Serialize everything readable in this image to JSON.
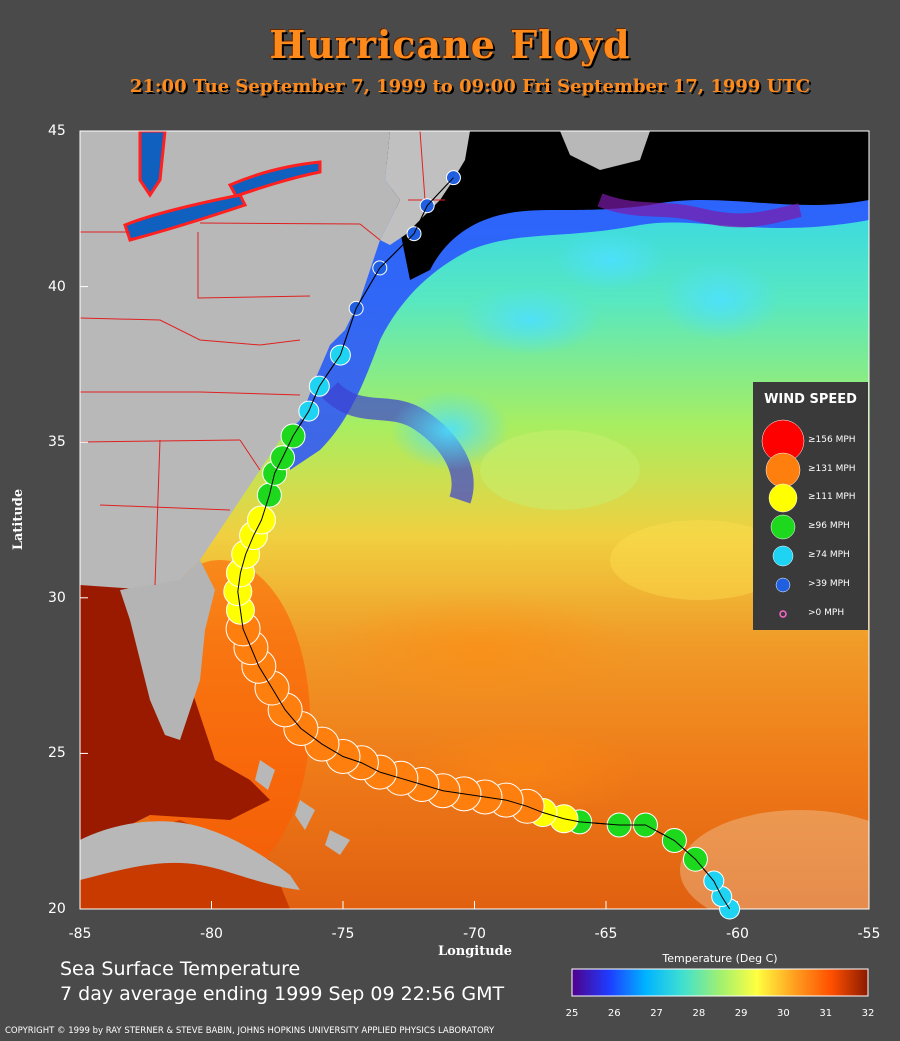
{
  "header": {
    "title": "Hurricane Floyd",
    "subtitle": "21:00 Tue September  7, 1999 to 09:00 Fri September 17, 1999  UTC"
  },
  "map": {
    "xlabel": "Longitude",
    "ylabel": "Latitude",
    "lon_range": [
      -85,
      -55
    ],
    "lat_range": [
      20,
      45
    ],
    "x_ticks": [
      "-85",
      "-80",
      "-75",
      "-70",
      "-65",
      "-60",
      "-55"
    ],
    "y_ticks": [
      "45",
      "40",
      "35",
      "30",
      "25",
      "20"
    ]
  },
  "legend": {
    "title": "WIND SPEED",
    "items": [
      {
        "label": "≥156 MPH",
        "color": "#ff0000"
      },
      {
        "label": "≥131 MPH",
        "color": "#ff7f0e"
      },
      {
        "label": "≥111 MPH",
        "color": "#ffff00"
      },
      {
        "label": "≥96 MPH",
        "color": "#1ed81e"
      },
      {
        "label": "≥74 MPH",
        "color": "#1ed4f2"
      },
      {
        "label": ">39 MPH",
        "color": "#1f5fe0"
      },
      {
        "label": ">0 MPH",
        "color": "#ff66cc"
      }
    ]
  },
  "sst": {
    "line1": "Sea Surface Temperature",
    "line2": "7 day average ending 1999 Sep 09 22:56 GMT",
    "colorbar_title": "Temperature (Deg C)",
    "colorbar_ticks": [
      "25",
      "26",
      "27",
      "28",
      "29",
      "30",
      "31",
      "32"
    ],
    "colorbar_colors": [
      "#50008a",
      "#1e3cff",
      "#00b4ff",
      "#40e0d0",
      "#a0f070",
      "#ffff40",
      "#ffa020",
      "#ff5000",
      "#8a1a00"
    ]
  },
  "footer": {
    "copyright": "COPYRIGHT © 1999 by RAY STERNER & STEVE BABIN, JOHNS HOPKINS UNIVERSITY APPLIED PHYSICS LABORATORY"
  },
  "track": [
    {
      "lon": -60.3,
      "lat": 20.0,
      "cat": 4
    },
    {
      "lon": -60.6,
      "lat": 20.4,
      "cat": 4
    },
    {
      "lon": -60.9,
      "lat": 20.9,
      "cat": 4
    },
    {
      "lon": -61.6,
      "lat": 21.6,
      "cat": 3
    },
    {
      "lon": -62.4,
      "lat": 22.2,
      "cat": 3
    },
    {
      "lon": -63.5,
      "lat": 22.7,
      "cat": 3
    },
    {
      "lon": -64.5,
      "lat": 22.7,
      "cat": 3
    },
    {
      "lon": -66.0,
      "lat": 22.8,
      "cat": 3
    },
    {
      "lon": -66.6,
      "lat": 22.9,
      "cat": 2
    },
    {
      "lon": -67.4,
      "lat": 23.1,
      "cat": 2
    },
    {
      "lon": -68.0,
      "lat": 23.3,
      "cat": 1
    },
    {
      "lon": -68.8,
      "lat": 23.5,
      "cat": 1
    },
    {
      "lon": -69.6,
      "lat": 23.6,
      "cat": 1
    },
    {
      "lon": -70.4,
      "lat": 23.7,
      "cat": 1
    },
    {
      "lon": -71.2,
      "lat": 23.8,
      "cat": 1
    },
    {
      "lon": -72.0,
      "lat": 24.0,
      "cat": 1
    },
    {
      "lon": -72.8,
      "lat": 24.2,
      "cat": 1
    },
    {
      "lon": -73.6,
      "lat": 24.4,
      "cat": 1
    },
    {
      "lon": -74.3,
      "lat": 24.7,
      "cat": 1
    },
    {
      "lon": -75.0,
      "lat": 24.9,
      "cat": 1
    },
    {
      "lon": -75.8,
      "lat": 25.3,
      "cat": 1
    },
    {
      "lon": -76.6,
      "lat": 25.8,
      "cat": 1
    },
    {
      "lon": -77.2,
      "lat": 26.4,
      "cat": 1
    },
    {
      "lon": -77.7,
      "lat": 27.1,
      "cat": 1
    },
    {
      "lon": -78.2,
      "lat": 27.8,
      "cat": 1
    },
    {
      "lon": -78.5,
      "lat": 28.4,
      "cat": 1
    },
    {
      "lon": -78.8,
      "lat": 29.0,
      "cat": 1
    },
    {
      "lon": -78.9,
      "lat": 29.6,
      "cat": 2
    },
    {
      "lon": -79.0,
      "lat": 30.2,
      "cat": 2
    },
    {
      "lon": -78.9,
      "lat": 30.8,
      "cat": 2
    },
    {
      "lon": -78.7,
      "lat": 31.4,
      "cat": 2
    },
    {
      "lon": -78.4,
      "lat": 32.0,
      "cat": 2
    },
    {
      "lon": -78.1,
      "lat": 32.5,
      "cat": 2
    },
    {
      "lon": -77.8,
      "lat": 33.3,
      "cat": 3
    },
    {
      "lon": -77.6,
      "lat": 34.0,
      "cat": 3
    },
    {
      "lon": -77.3,
      "lat": 34.5,
      "cat": 3
    },
    {
      "lon": -76.9,
      "lat": 35.2,
      "cat": 3
    },
    {
      "lon": -76.3,
      "lat": 36.0,
      "cat": 4
    },
    {
      "lon": -75.9,
      "lat": 36.8,
      "cat": 4
    },
    {
      "lon": -75.1,
      "lat": 37.8,
      "cat": 4
    },
    {
      "lon": -74.5,
      "lat": 39.3,
      "cat": 5
    },
    {
      "lon": -73.6,
      "lat": 40.6,
      "cat": 5
    },
    {
      "lon": -72.3,
      "lat": 41.7,
      "cat": 5
    },
    {
      "lon": -71.8,
      "lat": 42.6,
      "cat": 5
    },
    {
      "lon": -70.8,
      "lat": 43.5,
      "cat": 5
    }
  ]
}
